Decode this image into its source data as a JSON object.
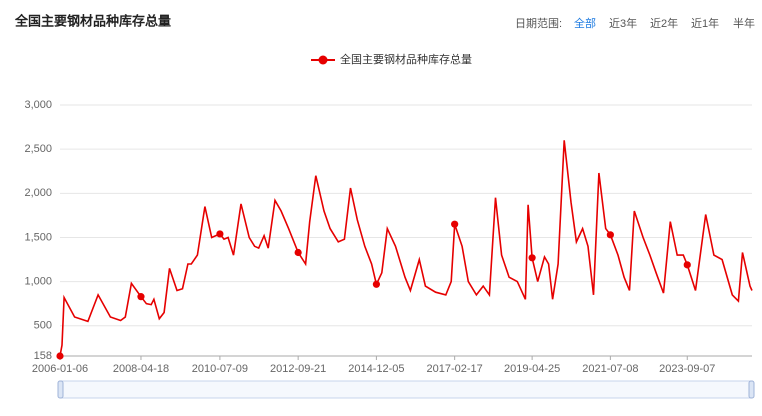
{
  "toolbar": {
    "label": "日期范围:",
    "options": [
      "全部",
      "近3年",
      "近2年",
      "近1年",
      "半年"
    ],
    "selected": 0
  },
  "chart_data": {
    "type": "line",
    "title": "全国主要钢材品种库存总量",
    "x": [
      "2006-01-06",
      "2006-01-27",
      "2006-02-17",
      "2006-06-05",
      "2006-10-20",
      "2007-02-02",
      "2007-06-08",
      "2007-09-21",
      "2007-11-09",
      "2008-01-11",
      "2008-04-18",
      "2008-06-13",
      "2008-08-01",
      "2008-08-29",
      "2008-10-24",
      "2008-12-12",
      "2009-02-06",
      "2009-04-24",
      "2009-06-19",
      "2009-08-14",
      "2009-09-18",
      "2009-11-20",
      "2010-02-05",
      "2010-04-16",
      "2010-07-09",
      "2010-08-20",
      "2010-10-01",
      "2010-11-26",
      "2011-02-11",
      "2011-05-06",
      "2011-07-01",
      "2011-08-12",
      "2011-10-07",
      "2011-11-18",
      "2012-01-27",
      "2012-03-30",
      "2012-06-15",
      "2012-09-21",
      "2012-12-07",
      "2013-01-18",
      "2013-03-22",
      "2013-06-14",
      "2013-08-16",
      "2013-11-08",
      "2014-01-10",
      "2014-03-14",
      "2014-05-23",
      "2014-08-08",
      "2014-10-17",
      "2014-12-05",
      "2015-01-30",
      "2015-03-27",
      "2015-06-19",
      "2015-09-25",
      "2015-11-20",
      "2016-02-19",
      "2016-04-22",
      "2016-08-05",
      "2016-11-18",
      "2017-01-13",
      "2017-02-17",
      "2017-05-05",
      "2017-07-07",
      "2017-09-29",
      "2017-12-08",
      "2018-02-09",
      "2018-04-13",
      "2018-06-15",
      "2018-08-31",
      "2018-11-23",
      "2019-02-15",
      "2019-03-15",
      "2019-04-25",
      "2019-06-21",
      "2019-08-30",
      "2019-10-11",
      "2019-11-22",
      "2020-01-17",
      "2020-03-20",
      "2020-05-29",
      "2020-07-24",
      "2020-09-25",
      "2020-11-20",
      "2021-01-15",
      "2021-03-12",
      "2021-05-21",
      "2021-07-08",
      "2021-09-24",
      "2021-11-26",
      "2022-01-21",
      "2022-03-11",
      "2022-06-10",
      "2022-08-19",
      "2022-10-21",
      "2023-01-06",
      "2023-03-17",
      "2023-05-26",
      "2023-07-28",
      "2023-09-07",
      "2023-12-01",
      "2024-03-15",
      "2024-06-07",
      "2024-08-30",
      "2024-12-13",
      "2025-02-14",
      "2025-03-28",
      "2025-06-13",
      "2025-07-04"
    ],
    "series": [
      {
        "name": "全国主要钢材品种库存总量",
        "color": "#e60000",
        "values": [
          158,
          280,
          820,
          600,
          550,
          850,
          600,
          560,
          600,
          980,
          830,
          750,
          740,
          800,
          580,
          650,
          1150,
          900,
          920,
          1200,
          1200,
          1300,
          1850,
          1500,
          1540,
          1480,
          1500,
          1300,
          1880,
          1500,
          1400,
          1380,
          1520,
          1380,
          1920,
          1800,
          1600,
          1330,
          1200,
          1680,
          2200,
          1800,
          1600,
          1450,
          1480,
          2060,
          1700,
          1400,
          1200,
          970,
          1100,
          1600,
          1400,
          1050,
          900,
          1250,
          950,
          880,
          850,
          1000,
          1650,
          1400,
          1000,
          850,
          950,
          850,
          1950,
          1300,
          1050,
          1000,
          800,
          1870,
          1270,
          1000,
          1280,
          1200,
          800,
          1200,
          2600,
          1900,
          1450,
          1600,
          1400,
          850,
          2230,
          1600,
          1530,
          1300,
          1050,
          900,
          1800,
          1500,
          1300,
          1100,
          870,
          1680,
          1300,
          1300,
          1190,
          900,
          1760,
          1300,
          1250,
          850,
          780,
          1330,
          950,
          900
        ]
      }
    ],
    "xlim": [
      "2006-01-06",
      "2025-07-04"
    ],
    "xticks": [
      "2006-01-06",
      "2008-04-18",
      "2010-07-09",
      "2012-09-21",
      "2014-12-05",
      "2017-02-17",
      "2019-04-25",
      "2021-07-08",
      "2023-09-07"
    ],
    "ylim": [
      158,
      3000
    ],
    "yticks": [
      158,
      500,
      {
        "value": 1000,
        "label": "1,000"
      },
      {
        "value": 1500,
        "label": "1,500"
      },
      {
        "value": 2000,
        "label": "2,000"
      },
      {
        "value": 2500,
        "label": "2,500"
      },
      {
        "value": 3000,
        "label": "3,000"
      }
    ],
    "grid": true
  }
}
